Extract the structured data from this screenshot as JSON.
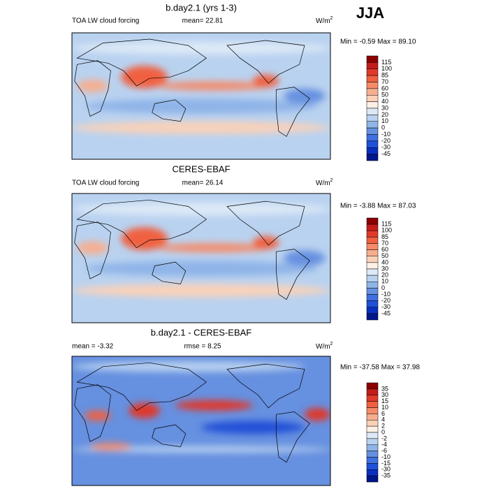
{
  "season": "JJA",
  "panels": [
    {
      "title": "b.day2.1 (yrs 1-3)",
      "left_label": "TOA LW cloud forcing",
      "center_label": "mean=  22.81",
      "units": "W/m",
      "units_sup": "2",
      "minmax": "Min =  -0.59 Max =  89.10",
      "colorbar": {
        "labels": [
          115,
          100,
          85,
          70,
          60,
          50,
          40,
          30,
          20,
          10,
          0,
          -10,
          -20,
          -30,
          -45
        ],
        "colors": [
          "#8b0000",
          "#c41b1b",
          "#e0392a",
          "#f06040",
          "#f58b69",
          "#f7ae8f",
          "#fad1b8",
          "#fdf0e6",
          "#dde9f7",
          "#b9d2f0",
          "#8fb4e8",
          "#6690e0",
          "#3f6fe0",
          "#2150d8",
          "#0a2fc0",
          "#00168a"
        ]
      }
    },
    {
      "title": "CERES-EBAF",
      "left_label": "TOA LW cloud forcing",
      "center_label": "mean=  26.14",
      "units": "W/m",
      "units_sup": "2",
      "minmax": "Min =  -3.88 Max =  87.03",
      "colorbar": {
        "labels": [
          115,
          100,
          85,
          70,
          60,
          50,
          40,
          30,
          20,
          10,
          0,
          -10,
          -20,
          -30,
          -45
        ],
        "colors": [
          "#8b0000",
          "#c41b1b",
          "#e0392a",
          "#f06040",
          "#f58b69",
          "#f7ae8f",
          "#fad1b8",
          "#fdf0e6",
          "#dde9f7",
          "#b9d2f0",
          "#8fb4e8",
          "#6690e0",
          "#3f6fe0",
          "#2150d8",
          "#0a2fc0",
          "#00168a"
        ]
      }
    },
    {
      "title": "b.day2.1 - CERES-EBAF",
      "left_label": "mean =  -3.32",
      "center_label": "rmse =   8.25",
      "units": "W/m",
      "units_sup": "2",
      "minmax": "Min = -37.58 Max =  37.98",
      "colorbar": {
        "labels": [
          35,
          30,
          15,
          10,
          6,
          4,
          2,
          0,
          -2,
          -4,
          -6,
          -10,
          -15,
          -30,
          -35
        ],
        "colors": [
          "#8b0000",
          "#c41b1b",
          "#e0392a",
          "#f06040",
          "#f58b69",
          "#f7ae8f",
          "#fad1b8",
          "#fdf0e6",
          "#dde9f7",
          "#b9d2f0",
          "#8fb4e8",
          "#6690e0",
          "#3f6fe0",
          "#2150d8",
          "#0a2fc0",
          "#00168a"
        ]
      }
    }
  ]
}
